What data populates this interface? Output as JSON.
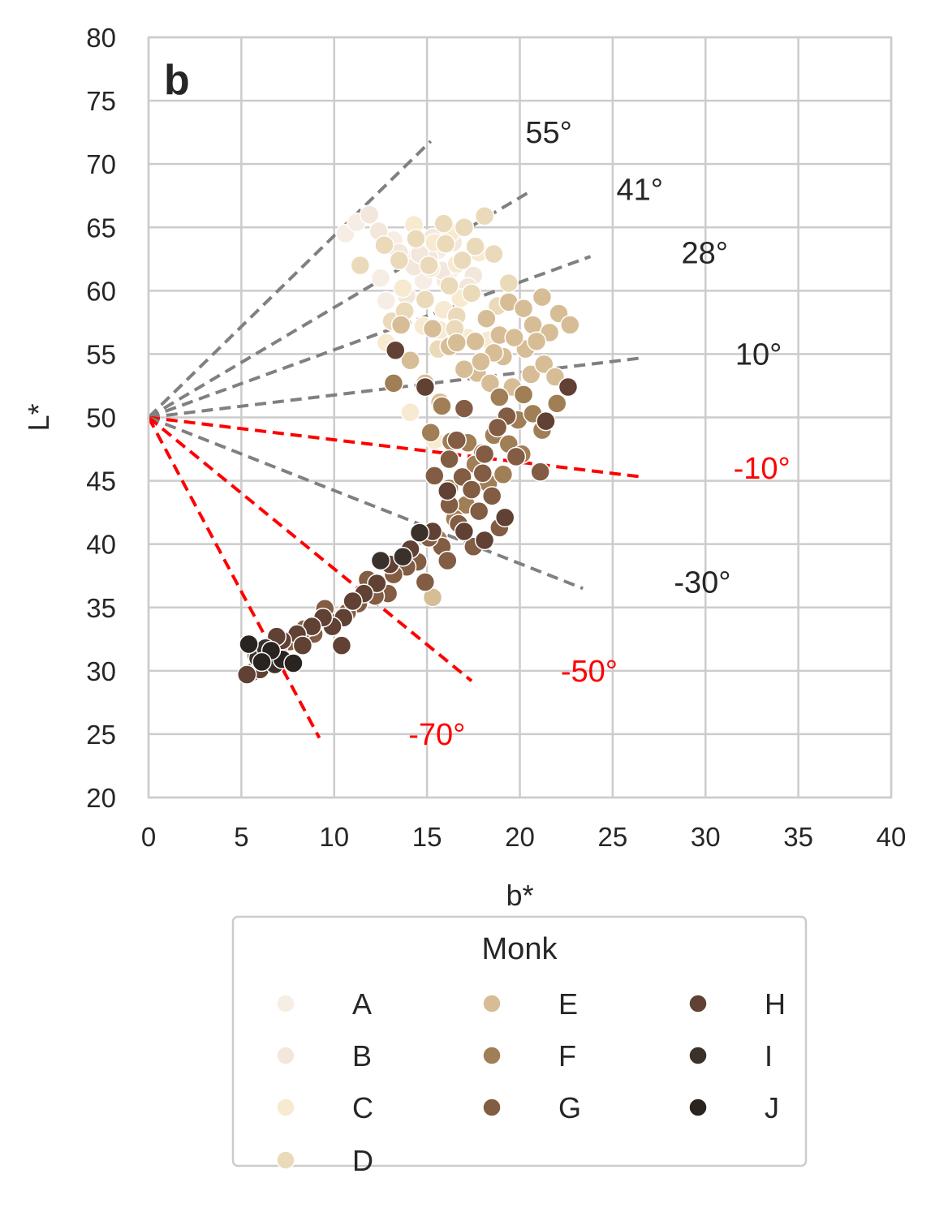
{
  "chart_data": {
    "type": "scatter",
    "panel_label": "b",
    "xlabel": "b*",
    "ylabel": "L*",
    "xlim": [
      0,
      40
    ],
    "ylim": [
      20,
      80
    ],
    "xticks": [
      0,
      5,
      10,
      15,
      20,
      25,
      30,
      35,
      40
    ],
    "yticks": [
      20,
      25,
      30,
      35,
      40,
      45,
      50,
      55,
      60,
      65,
      70,
      75,
      80
    ],
    "grid": true,
    "origin": [
      0,
      50
    ],
    "angle_lines": [
      {
        "label": "55°",
        "end": [
          15.2,
          71.8
        ],
        "label_pos": [
          20.3,
          72.5
        ],
        "color": "#808080"
      },
      {
        "label": "41°",
        "end": [
          20.4,
          67.7
        ],
        "label_pos": [
          25.2,
          68.0
        ],
        "color": "#808080"
      },
      {
        "label": "28°",
        "end": [
          23.8,
          62.7
        ],
        "label_pos": [
          28.7,
          63.0
        ],
        "color": "#808080"
      },
      {
        "label": "10°",
        "end": [
          26.6,
          54.7
        ],
        "label_pos": [
          31.6,
          55.0
        ],
        "color": "#808080"
      },
      {
        "label": "-10°",
        "end": [
          26.6,
          45.3
        ],
        "label_pos": [
          31.5,
          46.0
        ],
        "color": "#ff0000"
      },
      {
        "label": "-30°",
        "end": [
          23.4,
          36.5
        ],
        "label_pos": [
          28.3,
          37.0
        ],
        "color": "#808080"
      },
      {
        "label": "-50°",
        "end": [
          17.4,
          29.2
        ],
        "label_pos": [
          22.2,
          30.0
        ],
        "color": "#ff0000"
      },
      {
        "label": "-70°",
        "end": [
          9.2,
          24.7
        ],
        "label_pos": [
          14.0,
          25.0
        ],
        "color": "#ff0000"
      }
    ],
    "legend": {
      "title": "Monk",
      "placement": "below",
      "entries": [
        {
          "label": "A",
          "color": "#f6ede4"
        },
        {
          "label": "B",
          "color": "#f3e7db"
        },
        {
          "label": "C",
          "color": "#f7ead0"
        },
        {
          "label": "D",
          "color": "#eadaba"
        },
        {
          "label": "E",
          "color": "#d7bd96"
        },
        {
          "label": "F",
          "color": "#a07e56"
        },
        {
          "label": "G",
          "color": "#825c43"
        },
        {
          "label": "H",
          "color": "#604134"
        },
        {
          "label": "I",
          "color": "#3a312a"
        },
        {
          "label": "J",
          "color": "#292420"
        }
      ]
    },
    "series": [
      {
        "name": "A",
        "points": [
          [
            10.6,
            64.5
          ],
          [
            11.2,
            65.4
          ],
          [
            12.8,
            59.2
          ],
          [
            13.2,
            64.0
          ],
          [
            14.0,
            62.4
          ],
          [
            15.6,
            63.2
          ],
          [
            16.2,
            61.5
          ],
          [
            12.5,
            61.0
          ],
          [
            14.8,
            60.8
          ]
        ]
      },
      {
        "name": "B",
        "points": [
          [
            11.9,
            66.0
          ],
          [
            12.4,
            64.7
          ],
          [
            13.5,
            63.0
          ],
          [
            14.3,
            61.9
          ],
          [
            15.1,
            62.6
          ],
          [
            16.0,
            60.8
          ],
          [
            16.9,
            62.4
          ],
          [
            17.5,
            61.2
          ],
          [
            15.3,
            64.2
          ],
          [
            13.9,
            59.6
          ],
          [
            16.4,
            63.8
          ],
          [
            17.2,
            60.3
          ],
          [
            14.6,
            62.9
          ],
          [
            15.8,
            61.6
          ]
        ]
      },
      {
        "name": "C",
        "points": [
          [
            14.3,
            65.2
          ],
          [
            15.4,
            63.8
          ],
          [
            16.3,
            64.6
          ],
          [
            13.7,
            60.2
          ],
          [
            14.8,
            57.2
          ],
          [
            15.9,
            58.5
          ],
          [
            17.2,
            56.3
          ],
          [
            16.8,
            59.4
          ],
          [
            14.1,
            50.4
          ],
          [
            15.4,
            48.2
          ],
          [
            12.8,
            55.9
          ],
          [
            18.3,
            56.1
          ],
          [
            15.2,
            61.8
          ],
          [
            16.6,
            62.1
          ],
          [
            17.8,
            63.0
          ],
          [
            15.7,
            56.9
          ]
        ]
      },
      {
        "name": "D",
        "points": [
          [
            11.4,
            62.0
          ],
          [
            12.7,
            63.6
          ],
          [
            13.5,
            62.4
          ],
          [
            14.4,
            64.1
          ],
          [
            15.1,
            62.0
          ],
          [
            16.0,
            63.7
          ],
          [
            16.9,
            62.4
          ],
          [
            17.6,
            63.5
          ],
          [
            18.6,
            62.9
          ],
          [
            17.0,
            65.0
          ],
          [
            18.1,
            65.9
          ],
          [
            16.6,
            58.0
          ],
          [
            17.4,
            59.8
          ],
          [
            18.8,
            58.8
          ],
          [
            19.4,
            60.6
          ],
          [
            15.6,
            55.4
          ],
          [
            16.5,
            57.0
          ],
          [
            13.1,
            57.6
          ],
          [
            15.9,
            65.3
          ],
          [
            14.9,
            59.3
          ],
          [
            13.8,
            58.4
          ],
          [
            16.2,
            60.4
          ]
        ]
      },
      {
        "name": "E",
        "points": [
          [
            15.3,
            57.0
          ],
          [
            16.2,
            55.6
          ],
          [
            17.6,
            56.0
          ],
          [
            18.2,
            57.8
          ],
          [
            18.9,
            56.5
          ],
          [
            19.4,
            59.1
          ],
          [
            20.2,
            58.6
          ],
          [
            20.7,
            57.3
          ],
          [
            21.2,
            59.5
          ],
          [
            21.6,
            56.7
          ],
          [
            22.1,
            58.2
          ],
          [
            22.7,
            57.3
          ],
          [
            20.3,
            55.4
          ],
          [
            19.1,
            54.8
          ],
          [
            17.7,
            53.5
          ],
          [
            18.4,
            52.7
          ],
          [
            19.6,
            52.4
          ],
          [
            20.6,
            53.4
          ],
          [
            21.3,
            54.2
          ],
          [
            14.9,
            52.7
          ],
          [
            15.7,
            51.2
          ],
          [
            17.0,
            53.8
          ],
          [
            15.3,
            35.8
          ],
          [
            16.6,
            55.9
          ],
          [
            18.6,
            55.1
          ],
          [
            19.7,
            56.3
          ],
          [
            20.9,
            56.0
          ],
          [
            21.9,
            53.2
          ],
          [
            17.9,
            54.4
          ],
          [
            14.1,
            54.5
          ],
          [
            13.6,
            57.3
          ]
        ]
      },
      {
        "name": "F",
        "points": [
          [
            15.2,
            48.8
          ],
          [
            15.8,
            50.9
          ],
          [
            13.2,
            52.7
          ],
          [
            16.3,
            48.1
          ],
          [
            17.2,
            48.0
          ],
          [
            18.0,
            47.2
          ],
          [
            18.6,
            48.6
          ],
          [
            19.4,
            47.9
          ],
          [
            19.9,
            49.8
          ],
          [
            20.7,
            50.3
          ],
          [
            21.2,
            49.0
          ],
          [
            22.0,
            51.1
          ],
          [
            22.6,
            52.4
          ],
          [
            20.2,
            51.8
          ],
          [
            18.9,
            51.6
          ],
          [
            17.6,
            46.3
          ],
          [
            18.3,
            44.8
          ],
          [
            17.1,
            43.1
          ],
          [
            16.5,
            42.0
          ],
          [
            15.6,
            40.4
          ],
          [
            16.2,
            44.4
          ],
          [
            19.1,
            45.5
          ],
          [
            20.1,
            47.1
          ]
        ]
      },
      {
        "name": "G",
        "points": [
          [
            15.4,
            45.4
          ],
          [
            16.2,
            46.7
          ],
          [
            16.6,
            48.2
          ],
          [
            16.9,
            45.3
          ],
          [
            17.4,
            44.3
          ],
          [
            17.8,
            42.6
          ],
          [
            18.0,
            45.6
          ],
          [
            18.5,
            43.8
          ],
          [
            18.9,
            41.3
          ],
          [
            16.2,
            43.1
          ],
          [
            16.7,
            41.6
          ],
          [
            15.8,
            39.8
          ],
          [
            15.1,
            40.5
          ],
          [
            14.5,
            38.6
          ],
          [
            14.9,
            37.0
          ],
          [
            13.9,
            38.2
          ],
          [
            13.2,
            37.6
          ],
          [
            12.9,
            36.1
          ],
          [
            12.2,
            35.9
          ],
          [
            11.8,
            37.2
          ],
          [
            11.3,
            35.3
          ],
          [
            10.7,
            34.6
          ],
          [
            10.0,
            33.8
          ],
          [
            9.5,
            34.9
          ],
          [
            8.9,
            32.9
          ],
          [
            8.4,
            33.3
          ],
          [
            7.6,
            32.3
          ],
          [
            7.0,
            31.9
          ],
          [
            6.4,
            30.8
          ],
          [
            5.8,
            31.2
          ],
          [
            5.6,
            29.9
          ],
          [
            19.8,
            46.9
          ],
          [
            21.1,
            45.7
          ],
          [
            18.1,
            47.1
          ],
          [
            19.3,
            50.1
          ],
          [
            17.0,
            50.7
          ],
          [
            17.5,
            39.8
          ],
          [
            16.1,
            38.7
          ],
          [
            18.8,
            49.2
          ]
        ]
      },
      {
        "name": "H",
        "points": [
          [
            13.3,
            55.3
          ],
          [
            14.9,
            52.4
          ],
          [
            16.1,
            44.2
          ],
          [
            17.0,
            41.0
          ],
          [
            18.1,
            40.3
          ],
          [
            19.2,
            42.1
          ],
          [
            15.3,
            41.0
          ],
          [
            14.1,
            39.6
          ],
          [
            13.0,
            38.4
          ],
          [
            12.3,
            36.9
          ],
          [
            11.6,
            36.1
          ],
          [
            11.0,
            35.5
          ],
          [
            10.5,
            34.2
          ],
          [
            9.9,
            33.5
          ],
          [
            9.4,
            34.2
          ],
          [
            8.8,
            33.5
          ],
          [
            10.4,
            32.0
          ],
          [
            8.0,
            32.9
          ],
          [
            7.2,
            32.4
          ],
          [
            6.6,
            31.4
          ],
          [
            6.0,
            30.1
          ],
          [
            5.3,
            29.7
          ],
          [
            22.6,
            52.4
          ],
          [
            21.4,
            49.7
          ],
          [
            6.9,
            32.7
          ],
          [
            8.3,
            32.0
          ]
        ]
      },
      {
        "name": "I",
        "points": [
          [
            12.5,
            38.7
          ],
          [
            13.7,
            39.0
          ],
          [
            14.6,
            40.9
          ],
          [
            5.9,
            31.0
          ],
          [
            6.8,
            30.5
          ],
          [
            6.3,
            31.8
          ]
        ]
      },
      {
        "name": "J",
        "points": [
          [
            5.4,
            32.1
          ],
          [
            7.2,
            30.9
          ],
          [
            7.8,
            30.6
          ],
          [
            6.6,
            31.6
          ],
          [
            6.1,
            30.7
          ]
        ]
      }
    ]
  }
}
